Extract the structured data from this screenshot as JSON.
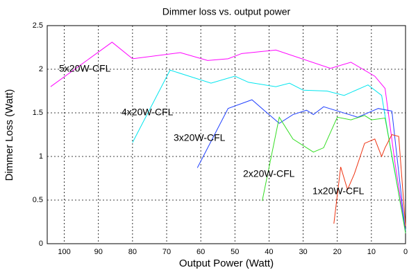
{
  "chart_data": {
    "type": "line",
    "title": "Dimmer loss vs. output power",
    "x_label": "Output Power (Watt)",
    "y_label": "Dimmer Loss (Watt)",
    "xlim": [
      105,
      0
    ],
    "ylim": [
      0,
      2.5
    ],
    "xticks": [
      100,
      90,
      80,
      70,
      60,
      50,
      40,
      30,
      20,
      10,
      0
    ],
    "yticks": [
      0,
      0.5,
      1,
      1.5,
      2,
      2.5
    ],
    "grid": true,
    "series": [
      {
        "name": "5x20W-CFL",
        "color": "#ff00ff",
        "x": [
          104,
          86,
          80,
          66,
          58,
          52,
          48,
          38,
          22,
          16,
          9,
          6,
          3,
          0
        ],
        "values": [
          1.8,
          2.31,
          2.12,
          2.19,
          2.1,
          2.12,
          2.18,
          2.22,
          2.01,
          2.08,
          1.92,
          1.78,
          0.9,
          0.15
        ]
      },
      {
        "name": "4x20W-CFL",
        "color": "#00e5ee",
        "x": [
          80,
          69,
          57,
          50,
          46,
          38,
          34,
          30,
          23,
          18,
          11,
          7,
          4,
          0
        ],
        "values": [
          1.16,
          1.99,
          1.84,
          1.92,
          1.85,
          1.8,
          1.84,
          1.76,
          1.75,
          1.7,
          1.82,
          1.7,
          1.0,
          0.15
        ]
      },
      {
        "name": "3x20W-CFL",
        "color": "#2040ff",
        "x": [
          61,
          52,
          45,
          40,
          37,
          33,
          29,
          27,
          24,
          14,
          8,
          4,
          0
        ],
        "values": [
          0.87,
          1.55,
          1.65,
          1.48,
          1.38,
          1.48,
          1.53,
          1.48,
          1.57,
          1.45,
          1.55,
          1.52,
          0.12
        ]
      },
      {
        "name": "2x20W-CFL",
        "color": "#33dd22",
        "x": [
          42,
          37,
          33,
          27,
          24,
          20,
          16,
          12,
          10,
          6,
          3,
          0
        ],
        "values": [
          0.49,
          1.45,
          1.2,
          1.05,
          1.1,
          1.45,
          1.42,
          1.47,
          1.42,
          1.44,
          0.8,
          0.12
        ]
      },
      {
        "name": "1x20W-CFL",
        "color": "#ee3311",
        "x": [
          21,
          19,
          17,
          15,
          12,
          9,
          7,
          6,
          4,
          2,
          0
        ],
        "values": [
          0.23,
          0.88,
          0.62,
          0.8,
          1.15,
          1.2,
          1.0,
          1.1,
          1.25,
          1.23,
          0.2
        ]
      }
    ]
  }
}
